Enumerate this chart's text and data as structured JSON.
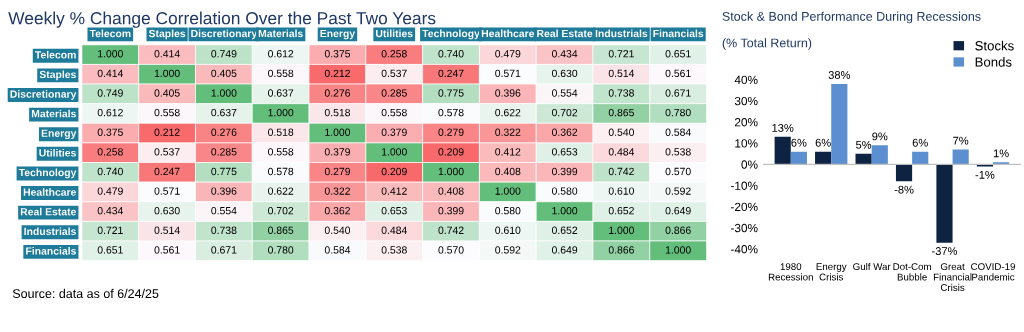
{
  "chart_data": [
    {
      "type": "heatmap",
      "title": "Weekly % Change Correlation Over the Past Two Years",
      "categories": [
        "Telecom",
        "Staples",
        "Discretionary",
        "Materials",
        "Energy",
        "Utilities",
        "Technology",
        "Healthcare",
        "Real Estate",
        "Industrials",
        "Financials"
      ],
      "y_categories": [
        "Telecom",
        "Staples",
        "Discretionary",
        "Materials",
        "Energy",
        "Utilities",
        "Technology",
        "Healthcare",
        "Real Estate",
        "Industrials",
        "Financials"
      ],
      "cells": [
        [
          1.0,
          0.414,
          0.749,
          0.612,
          0.375,
          0.258,
          0.74,
          0.479,
          0.434,
          0.721,
          0.651
        ],
        [
          0.414,
          1.0,
          0.405,
          0.558,
          0.212,
          0.537,
          0.247,
          0.571,
          0.63,
          0.514,
          0.561
        ],
        [
          0.749,
          0.405,
          1.0,
          0.637,
          0.276,
          0.285,
          0.775,
          0.396,
          0.554,
          0.738,
          0.671
        ],
        [
          0.612,
          0.558,
          0.637,
          1.0,
          0.518,
          0.558,
          0.578,
          0.622,
          0.702,
          0.865,
          0.78
        ],
        [
          0.375,
          0.212,
          0.276,
          0.518,
          1.0,
          0.379,
          0.279,
          0.322,
          0.362,
          0.54,
          0.584
        ],
        [
          0.258,
          0.537,
          0.285,
          0.558,
          0.379,
          1.0,
          0.209,
          0.412,
          0.653,
          0.484,
          0.538
        ],
        [
          0.74,
          0.247,
          0.775,
          0.578,
          0.279,
          0.209,
          1.0,
          0.408,
          0.399,
          0.742,
          0.57
        ],
        [
          0.479,
          0.571,
          0.396,
          0.622,
          0.322,
          0.412,
          0.408,
          1.0,
          0.58,
          0.61,
          0.592
        ],
        [
          0.434,
          0.63,
          0.554,
          0.702,
          0.362,
          0.653,
          0.399,
          0.58,
          1.0,
          0.652,
          0.649
        ],
        [
          0.721,
          0.514,
          0.738,
          0.865,
          0.54,
          0.484,
          0.742,
          0.61,
          0.652,
          1.0,
          0.866
        ],
        [
          0.651,
          0.561,
          0.671,
          0.78,
          0.584,
          0.538,
          0.57,
          0.592,
          0.649,
          0.866,
          1.0
        ]
      ],
      "cell_labels": [
        [
          "1.000",
          "0.414",
          "0.749",
          "0.612",
          "0.375",
          "0.258",
          "0.740",
          "0.479",
          "0.434",
          "0.721",
          "0.651"
        ],
        [
          "0.414",
          "1.000",
          "0.405",
          "0.558",
          "0.212",
          "0.537",
          "0.247",
          "0.571",
          "0.630",
          "0.514",
          "0.561"
        ],
        [
          "0.749",
          "0.405",
          "1.000",
          "0.637",
          "0.276",
          "0.285",
          "0.775",
          "0.396",
          "0.554",
          "0.738",
          "0.671"
        ],
        [
          "0.612",
          "0.558",
          "0.637",
          "1.000",
          "0.518",
          "0.558",
          "0.578",
          "0.622",
          "0.702",
          "0.865",
          "0.780"
        ],
        [
          "0.375",
          "0.212",
          "0.276",
          "0.518",
          "1.000",
          "0.379",
          "0.279",
          "0.322",
          "0.362",
          "0.540",
          "0.584"
        ],
        [
          "0.258",
          "0.537",
          "0.285",
          "0.558",
          "0.379",
          "1.000",
          "0.209",
          "0.412",
          "0.653",
          "0.484",
          "0.538"
        ],
        [
          "0.740",
          "0.247",
          "0.775",
          "0.578",
          "0.279",
          "0.209",
          "1.000",
          "0.408",
          "0.399",
          "0.742",
          "0.570"
        ],
        [
          "0.479",
          "0.571",
          "0.396",
          "0.622",
          "0.322",
          "0.412",
          "0.408",
          "1.000",
          "0.580",
          "0.610",
          "0.592"
        ],
        [
          "0.434",
          "0.630",
          "0.554",
          "0.702",
          "0.362",
          "0.653",
          "0.399",
          "0.580",
          "1.000",
          "0.652",
          "0.649"
        ],
        [
          "0.721",
          "0.514",
          "0.738",
          "0.865",
          "0.540",
          "0.484",
          "0.742",
          "0.610",
          "0.652",
          "1.000",
          "0.866"
        ],
        [
          "0.651",
          "0.561",
          "0.671",
          "0.780",
          "0.584",
          "0.538",
          "0.570",
          "0.592",
          "0.649",
          "0.866",
          "1.000"
        ]
      ],
      "annotations": [
        "Source: data as of 6/24/25"
      ]
    },
    {
      "type": "bar",
      "title": "Stock & Bond Performance During Recessions",
      "subtitle": "(% Total Return)",
      "categories": [
        "1980\nRecession",
        "Energy\nCrisis",
        "Gulf War",
        "Dot-Com\nBubble",
        "Great\nFinancial\nCrisis",
        "COVID-19\nPandemic"
      ],
      "series": [
        {
          "name": "Stocks",
          "color": "#0e2242",
          "values": [
            13,
            6,
            5,
            -8,
            -37,
            -1
          ],
          "value_labels": [
            "13%",
            "6%",
            "5%",
            "-8%",
            "-37%",
            "-1%"
          ]
        },
        {
          "name": "Bonds",
          "color": "#5b8fd0",
          "values": [
            6,
            38,
            9,
            6,
            7,
            1
          ],
          "value_labels": [
            "6%",
            "38%",
            "9%",
            "6%",
            "7%",
            "1%"
          ]
        }
      ],
      "ylim": [
        -40,
        40
      ],
      "yticks": [
        {
          "value": -40,
          "label": "-40%"
        },
        {
          "value": -30,
          "label": "-30%"
        },
        {
          "value": -20,
          "label": "-20%"
        },
        {
          "value": -10,
          "label": "-10%"
        },
        {
          "value": 0,
          "label": "0%"
        },
        {
          "value": 10,
          "label": "10%"
        },
        {
          "value": 20,
          "label": "20%"
        },
        {
          "value": 30,
          "label": "30%"
        },
        {
          "value": 40,
          "label": "40%"
        }
      ],
      "ref_lines": [
        {
          "axis": "y",
          "value": 0,
          "color": "#bfbfbf"
        }
      ],
      "legend": "top right",
      "grid": false
    }
  ]
}
